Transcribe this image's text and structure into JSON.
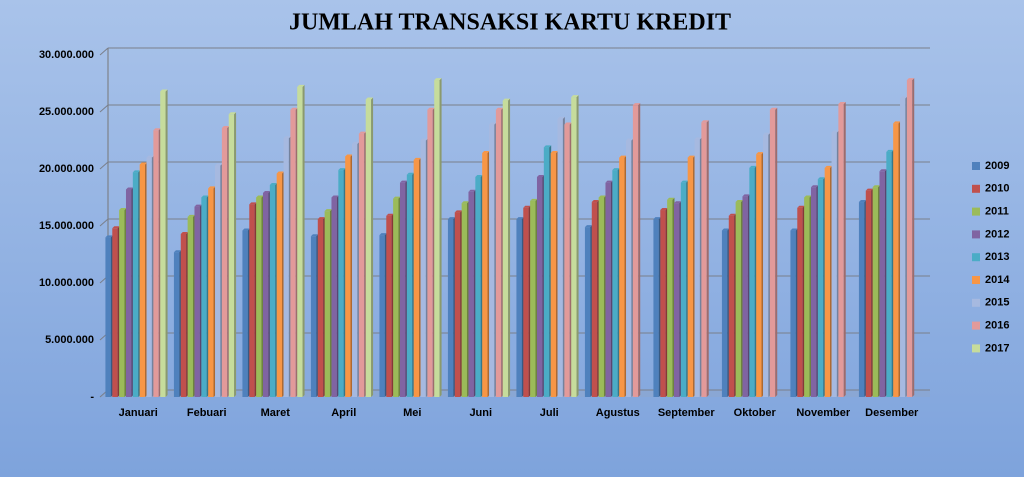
{
  "chart_data": {
    "type": "bar",
    "title": "JUMLAH TRANSAKSI KARTU KREDIT",
    "categories": [
      "Januari",
      "Febuari",
      "Maret",
      "April",
      "Mei",
      "Juni",
      "Juli",
      "Agustus",
      "September",
      "Oktober",
      "November",
      "Desember"
    ],
    "series": [
      {
        "name": "2009",
        "color": "#4f81bd",
        "values": [
          14000000,
          12700000,
          14600000,
          14100000,
          14200000,
          15600000,
          15600000,
          14900000,
          15600000,
          14600000,
          14600000,
          17100000
        ]
      },
      {
        "name": "2010",
        "color": "#c0504d",
        "values": [
          14800000,
          14300000,
          16900000,
          15600000,
          15900000,
          16200000,
          16600000,
          17100000,
          16400000,
          15900000,
          16600000,
          18100000
        ]
      },
      {
        "name": "2011",
        "color": "#9bbb59",
        "values": [
          16400000,
          15800000,
          17500000,
          16300000,
          17400000,
          17000000,
          17200000,
          17500000,
          17300000,
          17100000,
          17500000,
          18400000
        ]
      },
      {
        "name": "2012",
        "color": "#8064a2",
        "values": [
          18200000,
          16700000,
          17900000,
          17500000,
          18800000,
          18000000,
          19300000,
          18800000,
          17000000,
          17600000,
          18400000,
          19800000
        ]
      },
      {
        "name": "2013",
        "color": "#4bacc6",
        "values": [
          19700000,
          17500000,
          18600000,
          19900000,
          19500000,
          19300000,
          21900000,
          19900000,
          18800000,
          20100000,
          19100000,
          21500000
        ]
      },
      {
        "name": "2014",
        "color": "#f79646",
        "values": [
          20400000,
          18300000,
          19600000,
          21100000,
          20800000,
          21400000,
          21400000,
          21000000,
          21000000,
          21300000,
          20100000,
          24000000
        ]
      },
      {
        "name": "2015",
        "color": "#a6b9e0",
        "values": [
          21000000,
          20300000,
          22700000,
          22200000,
          22500000,
          23900000,
          24400000,
          22500000,
          22600000,
          23000000,
          23200000,
          26200000
        ]
      },
      {
        "name": "2016",
        "color": "#e29a9a",
        "values": [
          23400000,
          23600000,
          25200000,
          23100000,
          25200000,
          25200000,
          23900000,
          25600000,
          24100000,
          25200000,
          25700000,
          27800000
        ]
      },
      {
        "name": "2017",
        "color": "#c6dc9c",
        "values": [
          26800000,
          24800000,
          27200000,
          26100000,
          27800000,
          26000000,
          26300000,
          null,
          null,
          null,
          null,
          null
        ]
      }
    ],
    "ylim": [
      0,
      30000000
    ],
    "yticks": [
      {
        "value": 0,
        "label": "-"
      },
      {
        "value": 5000000,
        "label": "5.000.000"
      },
      {
        "value": 10000000,
        "label": "10.000.000"
      },
      {
        "value": 15000000,
        "label": "15.000.000"
      },
      {
        "value": 20000000,
        "label": "20.000.000"
      },
      {
        "value": 25000000,
        "label": "25.000.000"
      },
      {
        "value": 30000000,
        "label": "30.000.000"
      }
    ],
    "grid": true,
    "legend": "right"
  }
}
